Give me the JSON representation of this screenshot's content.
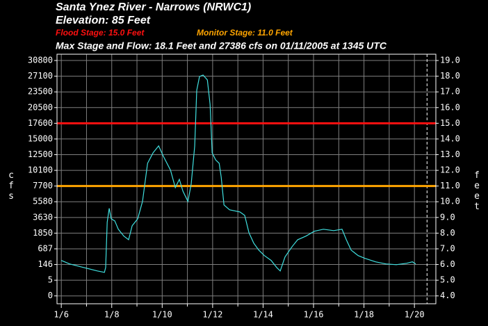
{
  "chart_data": {
    "type": "line",
    "title": "Santa Ynez River - Narrows (NRWC1)",
    "subtitle": "Elevation: 85 Feet",
    "max_text": "Max Stage and Flow: 18.1 Feet and 27386 cfs on 01/11/2005 at 1345 UTC",
    "thresholds": [
      {
        "label": "Flood Stage: 15.0 Feet",
        "value": 15.0,
        "color": "#ff1010"
      },
      {
        "label": "Monitor Stage: 11.0 Feet",
        "value": 11.0,
        "color": "#ffa500"
      }
    ],
    "ylabel": "cfs",
    "y2label": "feet",
    "xlim": [
      5.83,
      20.85
    ],
    "xticks": [
      {
        "value": 6,
        "label": "1/6"
      },
      {
        "value": 8,
        "label": "1/8"
      },
      {
        "value": 10,
        "label": "1/10"
      },
      {
        "value": 12,
        "label": "1/12"
      },
      {
        "value": 14,
        "label": "1/14"
      },
      {
        "value": 16,
        "label": "1/16"
      },
      {
        "value": 18,
        "label": "1/18"
      },
      {
        "value": 20,
        "label": "1/20"
      }
    ],
    "minor_xticks": [
      7,
      9,
      11,
      13,
      15,
      17,
      19
    ],
    "ylim": [
      3.5,
      19.4
    ],
    "yticks": [
      {
        "value": 4,
        "label": "4.0"
      },
      {
        "value": 5,
        "label": "5.0"
      },
      {
        "value": 6,
        "label": "6.0"
      },
      {
        "value": 7,
        "label": "7.0"
      },
      {
        "value": 8,
        "label": "8.0"
      },
      {
        "value": 9,
        "label": "9.0"
      },
      {
        "value": 10,
        "label": "10.0"
      },
      {
        "value": 11,
        "label": "11.0"
      },
      {
        "value": 12,
        "label": "12.0"
      },
      {
        "value": 13,
        "label": "13.0"
      },
      {
        "value": 14,
        "label": "14.0"
      },
      {
        "value": 15,
        "label": "15.0"
      },
      {
        "value": 16,
        "label": "16.0"
      },
      {
        "value": 17,
        "label": "17.0"
      },
      {
        "value": 18,
        "label": "18.0"
      },
      {
        "value": 19,
        "label": "19.0"
      }
    ],
    "y2ticks": [
      0,
      5,
      146,
      687,
      1850,
      3630,
      5580,
      7700,
      10100,
      12500,
      15000,
      17600,
      20500,
      23500,
      27100,
      30800
    ],
    "grid": true,
    "forecast_line_x": 20.5,
    "x": [
      6.0,
      6.33,
      6.88,
      7.43,
      7.71,
      7.76,
      7.82,
      7.9,
      7.98,
      8.12,
      8.26,
      8.48,
      8.67,
      8.81,
      9.03,
      9.22,
      9.42,
      9.64,
      9.86,
      10.05,
      10.33,
      10.52,
      10.68,
      10.82,
      11.02,
      11.15,
      11.29,
      11.37,
      11.48,
      11.62,
      11.79,
      11.9,
      11.98,
      12.12,
      12.26,
      12.34,
      12.45,
      12.67,
      13.08,
      13.27,
      13.44,
      13.63,
      13.83,
      14.05,
      14.32,
      14.54,
      14.68,
      14.87,
      15.15,
      15.37,
      15.7,
      16.03,
      16.39,
      16.8,
      17.13,
      17.3,
      17.49,
      17.77,
      18.04,
      18.46,
      18.87,
      19.28,
      19.7,
      19.92,
      20.05
    ],
    "series": [
      {
        "color": "#40e0e0",
        "values": [
          6.26,
          6.04,
          5.81,
          5.59,
          5.5,
          5.81,
          8.69,
          9.58,
          8.91,
          8.78,
          8.25,
          7.81,
          7.58,
          8.47,
          8.91,
          10.02,
          12.45,
          13.12,
          13.56,
          12.89,
          12.01,
          10.9,
          11.43,
          10.68,
          10.02,
          11.12,
          13.56,
          17.1,
          17.98,
          18.07,
          17.76,
          16.21,
          13.12,
          12.67,
          12.45,
          11.57,
          9.8,
          9.49,
          9.35,
          9.13,
          8.03,
          7.36,
          6.92,
          6.57,
          6.26,
          5.81,
          5.59,
          6.48,
          7.14,
          7.58,
          7.81,
          8.12,
          8.25,
          8.16,
          8.25,
          7.58,
          6.92,
          6.57,
          6.39,
          6.17,
          6.04,
          5.99,
          6.08,
          6.17,
          6.04
        ]
      }
    ]
  }
}
